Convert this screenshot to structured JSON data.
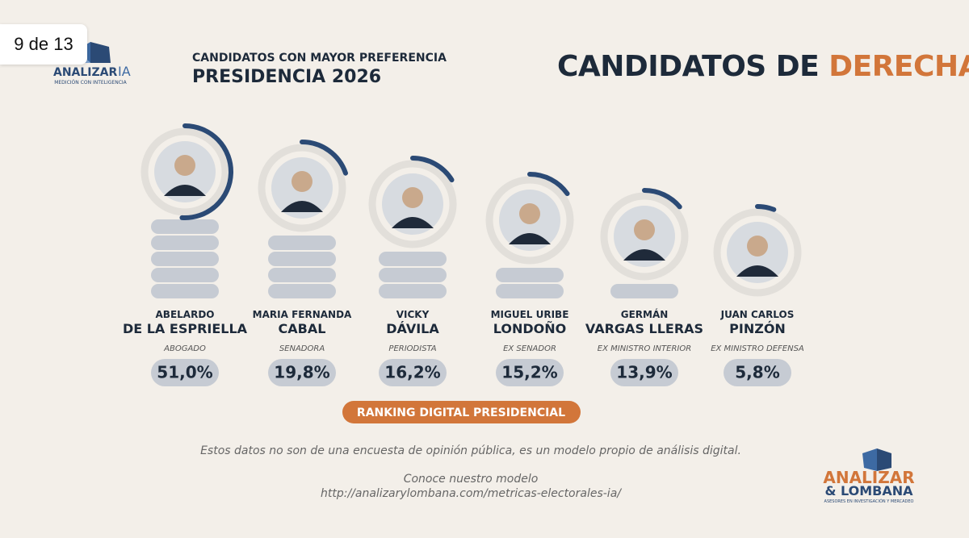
{
  "page_label": "9 de 13",
  "brand": {
    "name": "ANALIZAR",
    "suffix": "IA",
    "tagline": "MEDICIÓN CON INTELIGENCIA"
  },
  "header": {
    "kicker": "CANDIDATOS CON MAYOR PREFERENCIA",
    "subtitle": "PRESIDENCIA 2026",
    "title": "CANDIDATOS DE",
    "title_highlight": "DERECHA"
  },
  "candidates": [
    {
      "first_name": "ABELARDO",
      "last_name": "DE LA ESPRIELLA",
      "role": "ABOGADO",
      "share": 51.0,
      "share_label": "51,0%"
    },
    {
      "first_name": "MARIA FERNANDA",
      "last_name": "CABAL",
      "role": "SENADORA",
      "share": 19.8,
      "share_label": "19,8%"
    },
    {
      "first_name": "VICKY",
      "last_name": "DÁVILA",
      "role": "PERIODISTA",
      "share": 16.2,
      "share_label": "16,2%"
    },
    {
      "first_name": "MIGUEL URIBE",
      "last_name": "LONDOÑO",
      "role": "EX SENADOR",
      "share": 15.2,
      "share_label": "15,2%"
    },
    {
      "first_name": "GERMÁN",
      "last_name": "VARGAS LLERAS",
      "role": "EX MINISTRO INTERIOR",
      "share": 13.9,
      "share_label": "13,9%"
    },
    {
      "first_name": "JUAN CARLOS",
      "last_name": "PINZÓN",
      "role": "EX MINISTRO DEFENSA",
      "share": 5.8,
      "share_label": "5,8%"
    }
  ],
  "button": "RANKING DIGITAL PRESIDENCIAL",
  "disclaimer": "Estos datos no son de una encuesta de opinión pública, es un modelo propio de análisis digital.",
  "cta": "Conoce nuestro modelo",
  "url": "http://analizarylombana.com/metricas-electorales-ia/",
  "footer_brand": {
    "line1": "ANALIZAR",
    "line2": "& LOMBANA",
    "tagline": "ASESORES EN INVESTIGACIÓN Y MERCADEO"
  }
}
